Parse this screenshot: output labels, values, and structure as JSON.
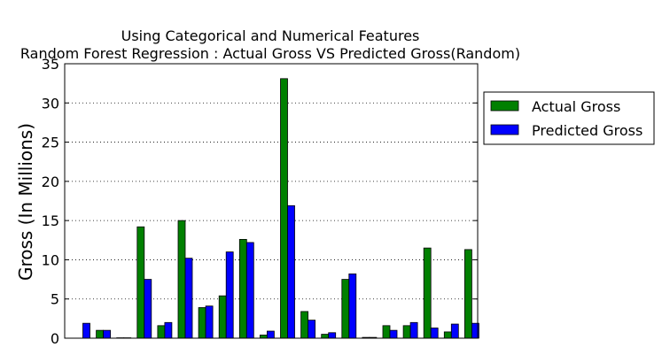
{
  "chart_data": {
    "type": "bar",
    "title": "Using Categorical and Numerical Features",
    "subtitle": "Random Forest Regression : Actual Gross VS Predicted Gross(Random)",
    "xlabel": "",
    "ylabel": "Gross (In Millions)",
    "ylim": [
      0,
      35
    ],
    "yticks": [
      0,
      5,
      10,
      15,
      20,
      25,
      30,
      35
    ],
    "grid": "horizontal dotted",
    "legend_position": "outside right",
    "series": [
      {
        "name": "Actual Gross",
        "color": "#008000",
        "values": [
          0.0,
          1.0,
          0.05,
          14.2,
          1.6,
          15.0,
          3.9,
          5.4,
          12.6,
          0.4,
          33.1,
          3.4,
          0.5,
          7.5,
          0.1,
          1.6,
          1.6,
          11.5,
          0.8,
          11.3
        ]
      },
      {
        "name": "Predicted Gross",
        "color": "#0000ff",
        "values": [
          1.9,
          1.0,
          0.05,
          7.5,
          2.0,
          10.2,
          4.1,
          11.0,
          12.2,
          0.9,
          16.9,
          2.3,
          0.7,
          8.2,
          0.1,
          1.0,
          2.0,
          1.3,
          1.8,
          1.9
        ]
      }
    ]
  }
}
